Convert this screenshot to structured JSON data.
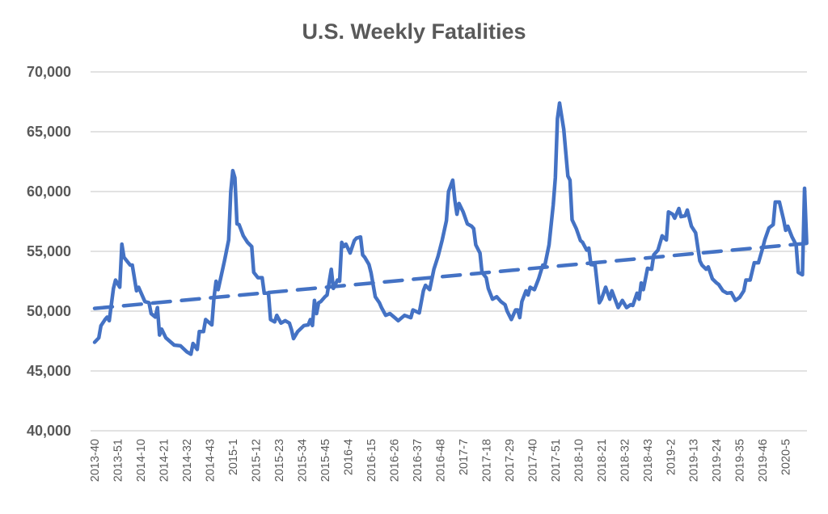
{
  "chart_data": {
    "type": "line",
    "title": "U.S. Weekly Fatalities",
    "xlabel": "",
    "ylabel": "",
    "ylim": [
      40000,
      70000
    ],
    "y_ticks": [
      "40,000",
      "45,000",
      "50,000",
      "55,000",
      "60,000",
      "65,000",
      "70,000"
    ],
    "y_tick_values": [
      40000,
      45000,
      50000,
      55000,
      60000,
      65000,
      70000
    ],
    "x_range": [
      "2013-40",
      "2020-15"
    ],
    "x_tick_labels": [
      "2013-40",
      "2013-51",
      "2014-10",
      "2014-21",
      "2014-32",
      "2014-43",
      "2015-1",
      "2015-12",
      "2015-23",
      "2015-34",
      "2015-45",
      "2016-4",
      "2016-15",
      "2016-26",
      "2016-37",
      "2016-48",
      "2017-7",
      "2017-18",
      "2017-29",
      "2017-40",
      "2017-51",
      "2018-10",
      "2018-21",
      "2018-32",
      "2018-43",
      "2019-2",
      "2019-13",
      "2019-24",
      "2019-35",
      "2019-46",
      "2020-5"
    ],
    "grid": true,
    "legend": "none",
    "colors": {
      "series": "#4472C4",
      "grid": "#D9D9D9",
      "text": "#595959"
    },
    "series": [
      {
        "style": "solid",
        "x": [
          "2013-40",
          "2013-42",
          "2013-43",
          "2013-45",
          "2013-46",
          "2013-47",
          "2013-49",
          "2013-50",
          "2013-52",
          "2014-1",
          "2014-2",
          "2014-5",
          "2014-6",
          "2014-8",
          "2014-9",
          "2014-12",
          "2014-14",
          "2014-15",
          "2014-17",
          "2014-18",
          "2014-19",
          "2014-20",
          "2014-22",
          "2014-26",
          "2014-29",
          "2014-32",
          "2014-34",
          "2014-35",
          "2014-37",
          "2014-38",
          "2014-40",
          "2014-41",
          "2014-44",
          "2014-45",
          "2014-46",
          "2014-47",
          "2014-50",
          "2014-52",
          "2014-53",
          "2015-1",
          "2015-2",
          "2015-3",
          "2015-4",
          "2015-6",
          "2015-8",
          "2015-10",
          "2015-11",
          "2015-13",
          "2015-15",
          "2015-16",
          "2015-18",
          "2015-19",
          "2015-21",
          "2015-22",
          "2015-24",
          "2015-26",
          "2015-28",
          "2015-29",
          "2015-30",
          "2015-32",
          "2015-35",
          "2015-37",
          "2015-38",
          "2015-39",
          "2015-40",
          "2015-41",
          "2015-42",
          "2015-43",
          "2015-45",
          "2015-46",
          "2015-48",
          "2015-49",
          "2015-51",
          "2015-52",
          "2016-1",
          "2016-2",
          "2016-3",
          "2016-5",
          "2016-7",
          "2016-8",
          "2016-10",
          "2016-11",
          "2016-12",
          "2016-14",
          "2016-15",
          "2016-17",
          "2016-19",
          "2016-20",
          "2016-22",
          "2016-24",
          "2016-26",
          "2016-28",
          "2016-31",
          "2016-34",
          "2016-35",
          "2016-38",
          "2016-40",
          "2016-41",
          "2016-43",
          "2016-45",
          "2016-47",
          "2016-49",
          "2016-51",
          "2016-52",
          "2017-2",
          "2017-3",
          "2017-4",
          "2017-5",
          "2017-7",
          "2017-9",
          "2017-11",
          "2017-12",
          "2017-13",
          "2017-15",
          "2017-16",
          "2017-18",
          "2017-19",
          "2017-21",
          "2017-23",
          "2017-25",
          "2017-27",
          "2017-28",
          "2017-30",
          "2017-32",
          "2017-33",
          "2017-34",
          "2017-35",
          "2017-37",
          "2017-38",
          "2017-39",
          "2017-41",
          "2017-43",
          "2017-45",
          "2017-46",
          "2017-48",
          "2017-50",
          "2017-51",
          "2017-52",
          "2018-1",
          "2018-3",
          "2018-5",
          "2018-6",
          "2018-7",
          "2018-9",
          "2018-11",
          "2018-12",
          "2018-14",
          "2018-15",
          "2018-16",
          "2018-18",
          "2018-20",
          "2018-21",
          "2018-23",
          "2018-25",
          "2018-26",
          "2018-29",
          "2018-31",
          "2018-33",
          "2018-35",
          "2018-36",
          "2018-38",
          "2018-39",
          "2018-40",
          "2018-41",
          "2018-43",
          "2018-45",
          "2018-46",
          "2018-48",
          "2018-50",
          "2018-52",
          "2019-1",
          "2019-3",
          "2019-4",
          "2019-6",
          "2019-7",
          "2019-9",
          "2019-10",
          "2019-12",
          "2019-14",
          "2019-16",
          "2019-17",
          "2019-19",
          "2019-20",
          "2019-22",
          "2019-24",
          "2019-25",
          "2019-27",
          "2019-29",
          "2019-31",
          "2019-33",
          "2019-35",
          "2019-37",
          "2019-38",
          "2019-40",
          "2019-42",
          "2019-44",
          "2019-46",
          "2019-47",
          "2019-49",
          "2019-51",
          "2019-52",
          "2020-2",
          "2020-4",
          "2020-5",
          "2020-6",
          "2020-8",
          "2020-10",
          "2020-11",
          "2020-13",
          "2020-14",
          "2020-15"
        ],
        "y": [
          47400,
          47770,
          48780,
          49300,
          49500,
          49200,
          51900,
          52600,
          52000,
          55600,
          54500,
          53850,
          53850,
          51700,
          52000,
          50800,
          50700,
          49800,
          49500,
          50300,
          48000,
          48500,
          47770,
          47160,
          47100,
          46600,
          46400,
          47300,
          46800,
          48300,
          48300,
          49300,
          48850,
          51100,
          52500,
          51800,
          54200,
          55950,
          60000,
          61750,
          61150,
          57300,
          57230,
          56300,
          55750,
          55400,
          53240,
          52800,
          52800,
          51500,
          51500,
          49300,
          49100,
          49650,
          49000,
          49200,
          49000,
          48450,
          47700,
          48300,
          48800,
          48850,
          49300,
          48800,
          50900,
          49800,
          50700,
          50800,
          51200,
          51350,
          53500,
          51900,
          52600,
          52500,
          55750,
          55400,
          55600,
          54860,
          55900,
          56100,
          56200,
          54700,
          54500,
          53900,
          53200,
          51200,
          50700,
          50300,
          49650,
          49800,
          49500,
          49200,
          49650,
          49450,
          50100,
          49850,
          51700,
          52160,
          51800,
          53500,
          54600,
          55950,
          57570,
          60000,
          60950,
          59300,
          58100,
          59000,
          58300,
          57300,
          57100,
          56900,
          55540,
          54860,
          53240,
          52800,
          51900,
          51000,
          51200,
          50800,
          50540,
          50000,
          49300,
          50100,
          50100,
          49460,
          50800,
          51700,
          51350,
          52000,
          51800,
          52700,
          53850,
          53850,
          55540,
          58900,
          61150,
          66100,
          67400,
          65200,
          61300,
          60950,
          57640,
          56900,
          55900,
          55750,
          55100,
          55270,
          53900,
          53850,
          50700,
          51000,
          52000,
          51000,
          51700,
          50300,
          50900,
          50300,
          50540,
          50470,
          51500,
          51000,
          52360,
          51800,
          53580,
          53500,
          54700,
          55100,
          56300,
          55950,
          58300,
          58100,
          57770,
          58580,
          57900,
          57970,
          58450,
          57100,
          56550,
          54200,
          53850,
          53500,
          53700,
          52700,
          52360,
          52230,
          51700,
          51500,
          51550,
          50900,
          51150,
          51700,
          52600,
          52600,
          54050,
          54050,
          55270,
          55950,
          56960,
          57230,
          59120,
          59120,
          57640,
          56760,
          57100,
          56200,
          55540,
          53240,
          53040,
          60270,
          55750
        ]
      },
      {
        "style": "dashed",
        "trendline": "linear",
        "x": [
          "2013-40",
          "2020-15"
        ],
        "y": [
          50230,
          55670
        ]
      }
    ]
  }
}
